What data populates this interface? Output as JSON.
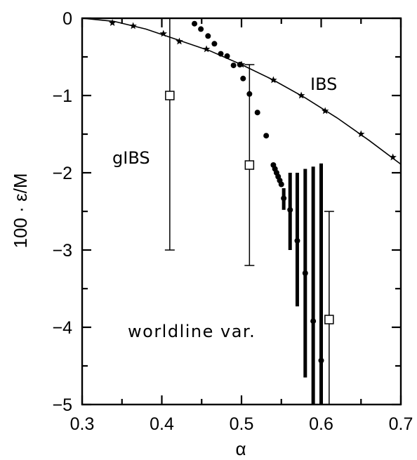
{
  "chart_data": {
    "type": "scatter",
    "xlabel": "α",
    "ylabel": "100 · ε/M",
    "xlim": [
      0.3,
      0.7
    ],
    "ylim": [
      -5,
      0
    ],
    "x_ticks": [
      "0.3",
      "0.4",
      "0.5",
      "0.6",
      "0.7"
    ],
    "y_ticks": [
      "0",
      "−1",
      "−2",
      "−3",
      "−4",
      "−5"
    ],
    "grid": false,
    "annotations": [
      "IBS",
      "gIBS",
      "worldline var."
    ],
    "series": [
      {
        "name": "IBS",
        "marker": "star",
        "line": true,
        "x": [
          0.338,
          0.364,
          0.402,
          0.422,
          0.456,
          0.5,
          0.54,
          0.575,
          0.605,
          0.65,
          0.69
        ],
        "y": [
          -0.06,
          -0.1,
          -0.2,
          -0.3,
          -0.4,
          -0.6,
          -0.8,
          -1.0,
          -1.2,
          -1.5,
          -1.8
        ],
        "curve_x": [
          0.3,
          0.34,
          0.38,
          0.42,
          0.46,
          0.5,
          0.54,
          0.58,
          0.62,
          0.66,
          0.7
        ],
        "curve_y": [
          0.0,
          -0.04,
          -0.14,
          -0.28,
          -0.42,
          -0.6,
          -0.8,
          -1.03,
          -1.29,
          -1.58,
          -1.89
        ]
      },
      {
        "name": "gIBS",
        "marker": "open-square",
        "x": [
          0.41,
          0.51,
          0.61
        ],
        "y": [
          -1.0,
          -1.9,
          -3.9
        ],
        "err_low": [
          -3.0,
          -3.2,
          -5.0
        ],
        "err_high": [
          0.0,
          -0.6,
          -2.5
        ]
      },
      {
        "name": "worldline var.",
        "marker": "filled-circle",
        "x": [
          0.441,
          0.449,
          0.458,
          0.466,
          0.474,
          0.482,
          0.49,
          0.498,
          0.502,
          0.51,
          0.52,
          0.531,
          0.54,
          0.542,
          0.544,
          0.546,
          0.548,
          0.55,
          0.553,
          0.561,
          0.57,
          0.58,
          0.59,
          0.6
        ],
        "y": [
          -0.07,
          -0.14,
          -0.23,
          -0.33,
          -0.46,
          -0.49,
          -0.61,
          -0.6,
          -0.78,
          -0.98,
          -1.22,
          -1.52,
          -1.9,
          -1.95,
          -2.0,
          -2.05,
          -2.1,
          -2.15,
          -2.33,
          -2.48,
          -2.88,
          -3.3,
          -3.92,
          -4.43
        ],
        "bars_x": [
          0.553,
          0.561,
          0.57,
          0.58,
          0.59,
          0.6
        ],
        "bars_low": [
          -2.48,
          -3.0,
          -3.73,
          -4.65,
          -5.0,
          -5.0
        ],
        "bars_high": [
          -2.2,
          -2.0,
          -2.0,
          -1.95,
          -1.92,
          -1.88
        ]
      }
    ]
  }
}
